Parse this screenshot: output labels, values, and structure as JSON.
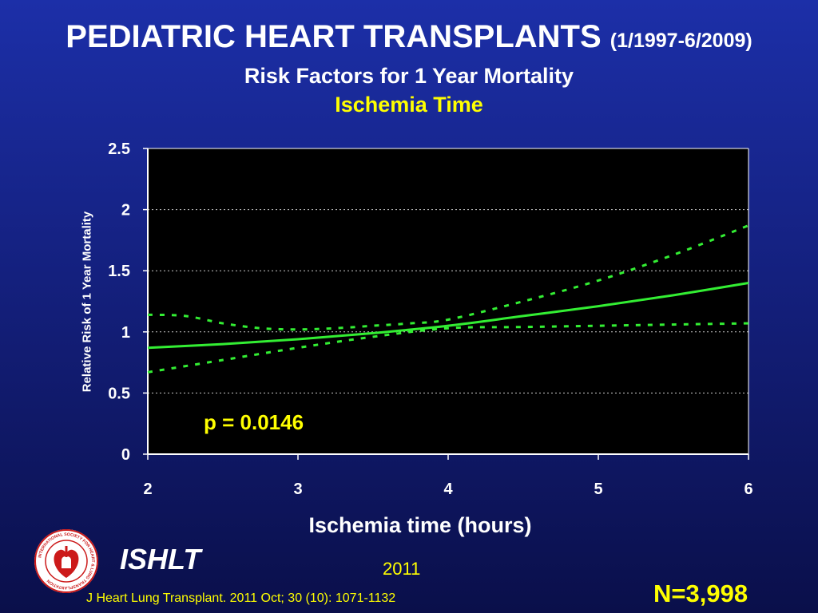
{
  "header": {
    "title": "PEDIATRIC HEART TRANSPLANTS",
    "date_range": "(1/1997-6/2009)",
    "subtitle": "Risk Factors for 1 Year Mortality",
    "topic": "Ischemia Time"
  },
  "annotation": {
    "p_value": "p = 0.0146"
  },
  "footer": {
    "organization": "ISHLT",
    "year": "2011",
    "citation": "J Heart Lung Transplant. 2011 Oct; 30 (10): 1071-1132",
    "sample_size": "N=3,998"
  },
  "logo": {
    "icon": "ishlt-seal-icon",
    "ring_text": "INTERNATIONAL SOCIETY FOR HEART & LUNG TRANSPLANTATION"
  },
  "colors": {
    "background": "#14207e",
    "plot_background": "#000000",
    "curve": "#33ee33",
    "highlight_text": "#ffff00",
    "axis": "#ffffff"
  },
  "chart_data": {
    "type": "line",
    "xlabel": "Ischemia time (hours)",
    "ylabel": "Relative Risk of 1 Year Mortality",
    "xlim": [
      2,
      6
    ],
    "ylim": [
      0,
      2.5
    ],
    "x_ticks": [
      "2",
      "3",
      "4",
      "5",
      "6"
    ],
    "y_ticks": [
      "0",
      "0.5",
      "1",
      "1.5",
      "2",
      "2.5"
    ],
    "grid": "horizontal dotted",
    "series": [
      {
        "style": "solid",
        "x": [
          2,
          2.5,
          3,
          3.5,
          4,
          4.5,
          5,
          5.5,
          6
        ],
        "y": [
          0.87,
          0.9,
          0.94,
          0.99,
          1.05,
          1.13,
          1.21,
          1.3,
          1.4
        ]
      },
      {
        "style": "dashed",
        "x": [
          2,
          2.25,
          2.5,
          2.75,
          3,
          3.25,
          3.5,
          3.75,
          4,
          4.5,
          5,
          5.5,
          6
        ],
        "y": [
          1.14,
          1.13,
          1.07,
          1.03,
          1.02,
          1.03,
          1.05,
          1.07,
          1.1,
          1.25,
          1.42,
          1.63,
          1.87
        ]
      },
      {
        "style": "dashed",
        "x": [
          2,
          2.5,
          3,
          3.5,
          4,
          4.5,
          5,
          5.5,
          6
        ],
        "y": [
          0.67,
          0.77,
          0.87,
          0.96,
          1.03,
          1.04,
          1.05,
          1.06,
          1.07
        ]
      }
    ]
  }
}
